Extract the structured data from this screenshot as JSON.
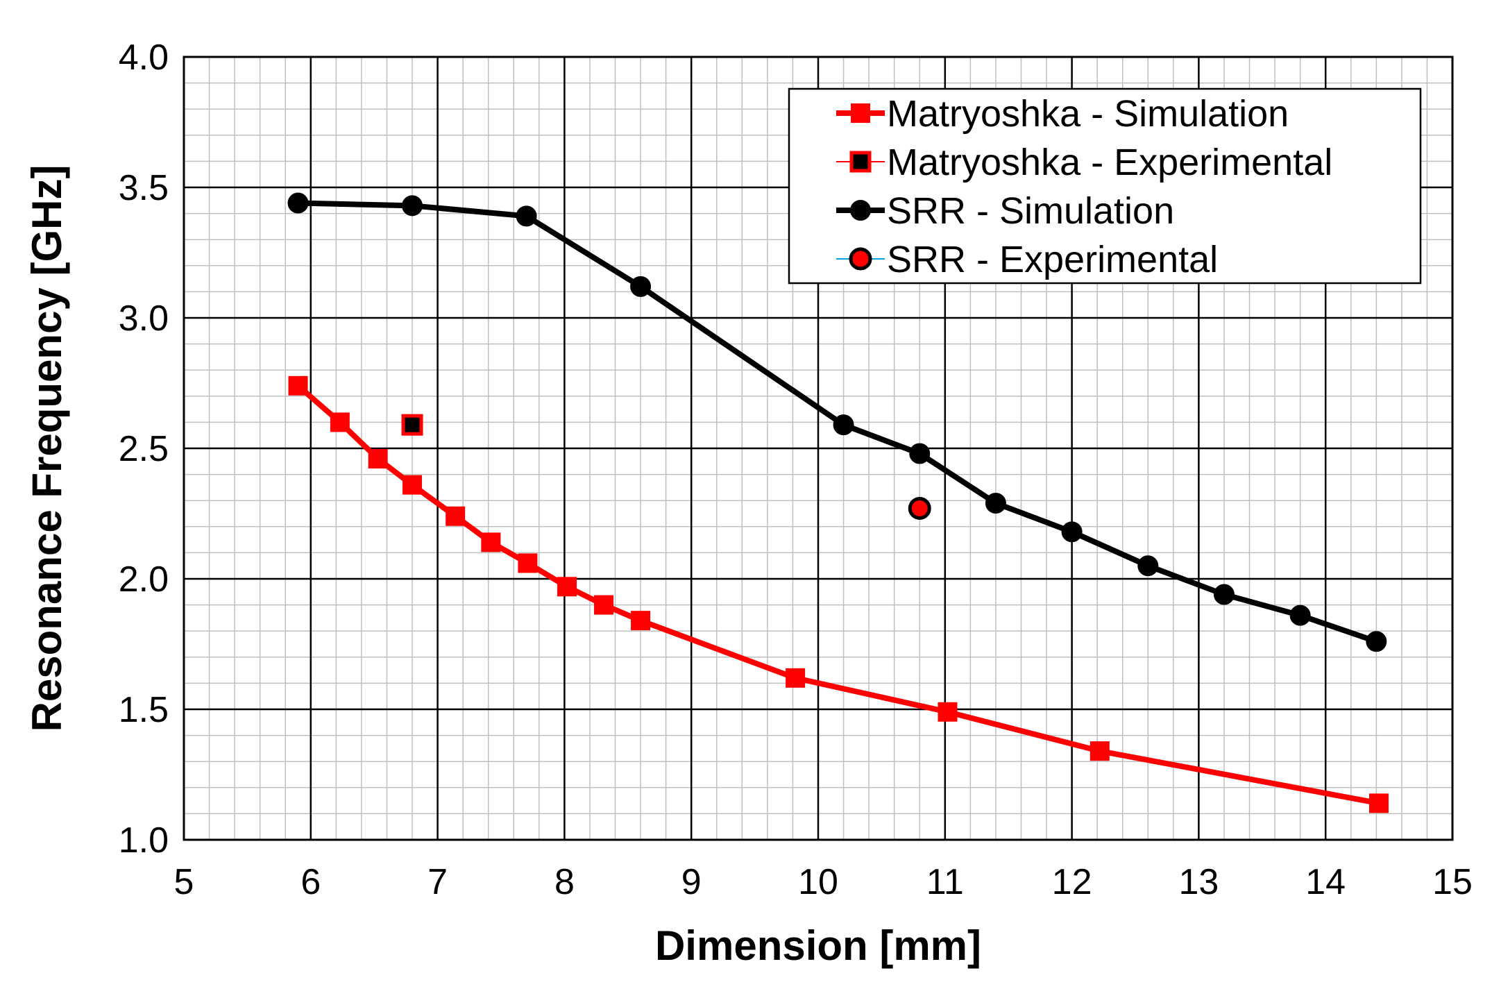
{
  "chart_data": {
    "type": "line",
    "title": "",
    "xlabel": "Dimension [mm]",
    "ylabel": "Resonance Frequency [GHz]",
    "xlim": [
      5,
      15
    ],
    "ylim": [
      1.0,
      4.0
    ],
    "x_ticks": [
      "5",
      "6",
      "7",
      "8",
      "9",
      "10",
      "11",
      "12",
      "13",
      "14",
      "15"
    ],
    "y_ticks": [
      "1.0",
      "1.5",
      "2.0",
      "2.5",
      "3.0",
      "3.5",
      "4.0"
    ],
    "grid": true,
    "legend_position": "top-right",
    "series": [
      {
        "name": "Matryoshka - Simulation",
        "color": "#ff0000",
        "marker": "square",
        "line": true,
        "x": [
          5.9,
          6.23,
          6.53,
          6.8,
          7.14,
          7.42,
          7.71,
          8.02,
          8.31,
          8.6,
          9.82,
          11.02,
          12.22,
          14.42
        ],
        "y": [
          2.74,
          2.6,
          2.46,
          2.36,
          2.24,
          2.14,
          2.06,
          1.97,
          1.9,
          1.84,
          1.62,
          1.49,
          1.34,
          1.14
        ]
      },
      {
        "name": "Matryoshka - Experimental",
        "color": "#000000",
        "edge_color": "#ff0000",
        "marker": "square",
        "line": false,
        "x": [
          6.8
        ],
        "y": [
          2.59
        ]
      },
      {
        "name": "SRR - Simulation",
        "color": "#000000",
        "marker": "circle",
        "line": true,
        "x": [
          5.9,
          6.8,
          7.7,
          8.6,
          10.2,
          10.8,
          11.4,
          12.0,
          12.6,
          13.2,
          13.8,
          14.4
        ],
        "y": [
          3.44,
          3.43,
          3.39,
          3.12,
          2.59,
          2.48,
          2.29,
          2.18,
          2.05,
          1.94,
          1.86,
          1.76
        ]
      },
      {
        "name": "SRR - Experimental",
        "color": "#ff0000",
        "edge_color": "#000000",
        "marker": "circle",
        "line": false,
        "x": [
          10.8
        ],
        "y": [
          2.27
        ]
      }
    ]
  }
}
